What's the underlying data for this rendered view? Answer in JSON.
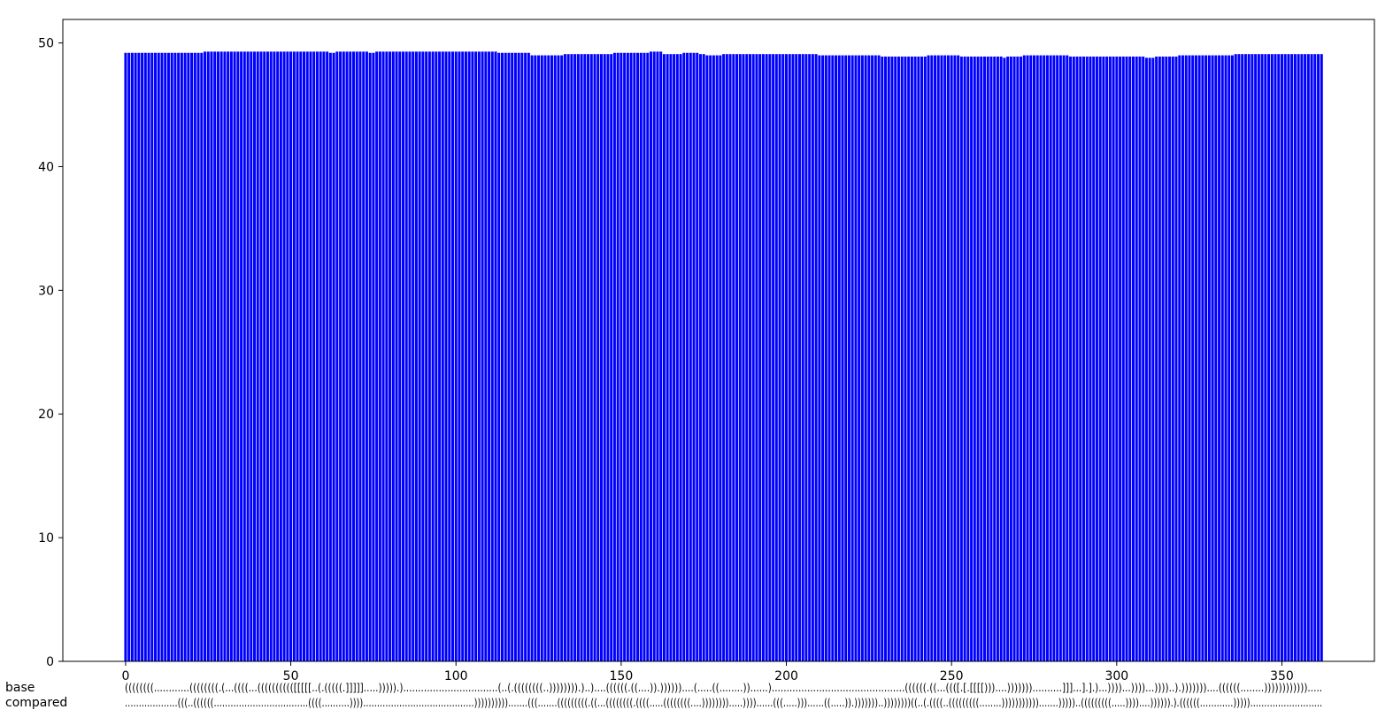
{
  "chart_data": {
    "type": "bar",
    "title": "",
    "xlabel": "",
    "ylabel": "",
    "bar_color": "#0000ff",
    "xlim": [
      -19,
      378
    ],
    "ylim": [
      0,
      51.9
    ],
    "x_ticks": [
      0,
      50,
      100,
      150,
      200,
      250,
      300,
      350
    ],
    "y_ticks": [
      0,
      10,
      20,
      30,
      40,
      50
    ],
    "x_start": 0,
    "grid": false,
    "legend": "none",
    "values": [
      49.2,
      49.2,
      49.2,
      49.2,
      49.2,
      49.2,
      49.2,
      49.2,
      49.2,
      49.2,
      49.2,
      49.2,
      49.2,
      49.2,
      49.2,
      49.2,
      49.2,
      49.2,
      49.2,
      49.2,
      49.2,
      49.2,
      49.2,
      49.2,
      49.3,
      49.3,
      49.3,
      49.3,
      49.3,
      49.3,
      49.3,
      49.3,
      49.3,
      49.3,
      49.3,
      49.3,
      49.3,
      49.3,
      49.3,
      49.3,
      49.3,
      49.3,
      49.3,
      49.3,
      49.3,
      49.3,
      49.3,
      49.3,
      49.3,
      49.3,
      49.3,
      49.3,
      49.3,
      49.3,
      49.3,
      49.3,
      49.3,
      49.3,
      49.3,
      49.3,
      49.3,
      49.3,
      49.2,
      49.2,
      49.3,
      49.3,
      49.3,
      49.3,
      49.3,
      49.3,
      49.3,
      49.3,
      49.3,
      49.3,
      49.2,
      49.2,
      49.3,
      49.3,
      49.3,
      49.3,
      49.3,
      49.3,
      49.3,
      49.3,
      49.3,
      49.3,
      49.3,
      49.3,
      49.3,
      49.3,
      49.3,
      49.3,
      49.3,
      49.3,
      49.3,
      49.3,
      49.3,
      49.3,
      49.3,
      49.3,
      49.3,
      49.3,
      49.3,
      49.3,
      49.3,
      49.3,
      49.3,
      49.3,
      49.3,
      49.3,
      49.3,
      49.3,
      49.3,
      49.2,
      49.2,
      49.2,
      49.2,
      49.2,
      49.2,
      49.2,
      49.2,
      49.2,
      49.2,
      49.0,
      49.0,
      49.0,
      49.0,
      49.0,
      49.0,
      49.0,
      49.0,
      49.0,
      49.0,
      49.1,
      49.1,
      49.1,
      49.1,
      49.1,
      49.1,
      49.1,
      49.1,
      49.1,
      49.1,
      49.1,
      49.1,
      49.1,
      49.1,
      49.1,
      49.2,
      49.2,
      49.2,
      49.2,
      49.2,
      49.2,
      49.2,
      49.2,
      49.2,
      49.2,
      49.2,
      49.3,
      49.3,
      49.3,
      49.3,
      49.1,
      49.1,
      49.1,
      49.1,
      49.1,
      49.1,
      49.2,
      49.2,
      49.2,
      49.2,
      49.2,
      49.1,
      49.1,
      49.0,
      49.0,
      49.0,
      49.0,
      49.0,
      49.1,
      49.1,
      49.1,
      49.1,
      49.1,
      49.1,
      49.1,
      49.1,
      49.1,
      49.1,
      49.1,
      49.1,
      49.1,
      49.1,
      49.1,
      49.1,
      49.1,
      49.1,
      49.1,
      49.1,
      49.1,
      49.1,
      49.1,
      49.1,
      49.1,
      49.1,
      49.1,
      49.1,
      49.1,
      49.0,
      49.0,
      49.0,
      49.0,
      49.0,
      49.0,
      49.0,
      49.0,
      49.0,
      49.0,
      49.0,
      49.0,
      49.0,
      49.0,
      49.0,
      49.0,
      49.0,
      49.0,
      49.0,
      48.9,
      48.9,
      48.9,
      48.9,
      48.9,
      48.9,
      48.9,
      48.9,
      48.9,
      48.9,
      48.9,
      48.9,
      48.9,
      48.9,
      49.0,
      49.0,
      49.0,
      49.0,
      49.0,
      49.0,
      49.0,
      49.0,
      49.0,
      49.0,
      48.9,
      48.9,
      48.9,
      48.9,
      48.9,
      48.9,
      48.9,
      48.9,
      48.9,
      48.9,
      48.9,
      48.9,
      48.9,
      48.8,
      48.9,
      48.9,
      48.9,
      48.9,
      48.9,
      49.0,
      49.0,
      49.0,
      49.0,
      49.0,
      49.0,
      49.0,
      49.0,
      49.0,
      49.0,
      49.0,
      49.0,
      49.0,
      49.0,
      48.9,
      48.9,
      48.9,
      48.9,
      48.9,
      48.9,
      48.9,
      48.9,
      48.9,
      48.9,
      48.9,
      48.9,
      48.9,
      48.9,
      48.9,
      48.9,
      48.9,
      48.9,
      48.9,
      48.9,
      48.9,
      48.9,
      48.9,
      48.8,
      48.8,
      48.8,
      48.9,
      48.9,
      48.9,
      48.9,
      48.9,
      48.9,
      48.9,
      49.0,
      49.0,
      49.0,
      49.0,
      49.0,
      49.0,
      49.0,
      49.0,
      49.0,
      49.0,
      49.0,
      49.0,
      49.0,
      49.0,
      49.0,
      49.0,
      49.0,
      49.1,
      49.1,
      49.1,
      49.1,
      49.1,
      49.1,
      49.1,
      49.1,
      49.1,
      49.1,
      49.1,
      49.1,
      49.1,
      49.1,
      49.1,
      49.1,
      49.1,
      49.1,
      49.1,
      49.1,
      49.1,
      49.1,
      49.1,
      49.1,
      49.1,
      49.1,
      49.1
    ],
    "structure_rows": [
      {
        "label": "base",
        "text": "((((((((............((((((((.(...((((...(((((((((([[[[[..(.(((((.]]]]].....))))).)................................(..(.((((((((..)))))))).)..)....((((((.((....)).))))))....(.....((........))......).............................................((((((.((...((([.[.[[[[)))....)))))))..........]]]...].].)...))))...))))...))))..).)))))))....((((((........))))))))))))....."
      },
      {
        "label": "compared",
        "text": "...................(((..((((((..................................((((..........))))........................................)))))))))).......(((.......(((((((((.((...((((((((.((((.....((((((((....)))))))).....))))......(((.....)))......((.....)).)))))))..))))))))((..(.((((..(((((((((........))))))))))).......)))))..(((((((((.....))))....)))))).).((((((............))))).........................."
      }
    ]
  }
}
